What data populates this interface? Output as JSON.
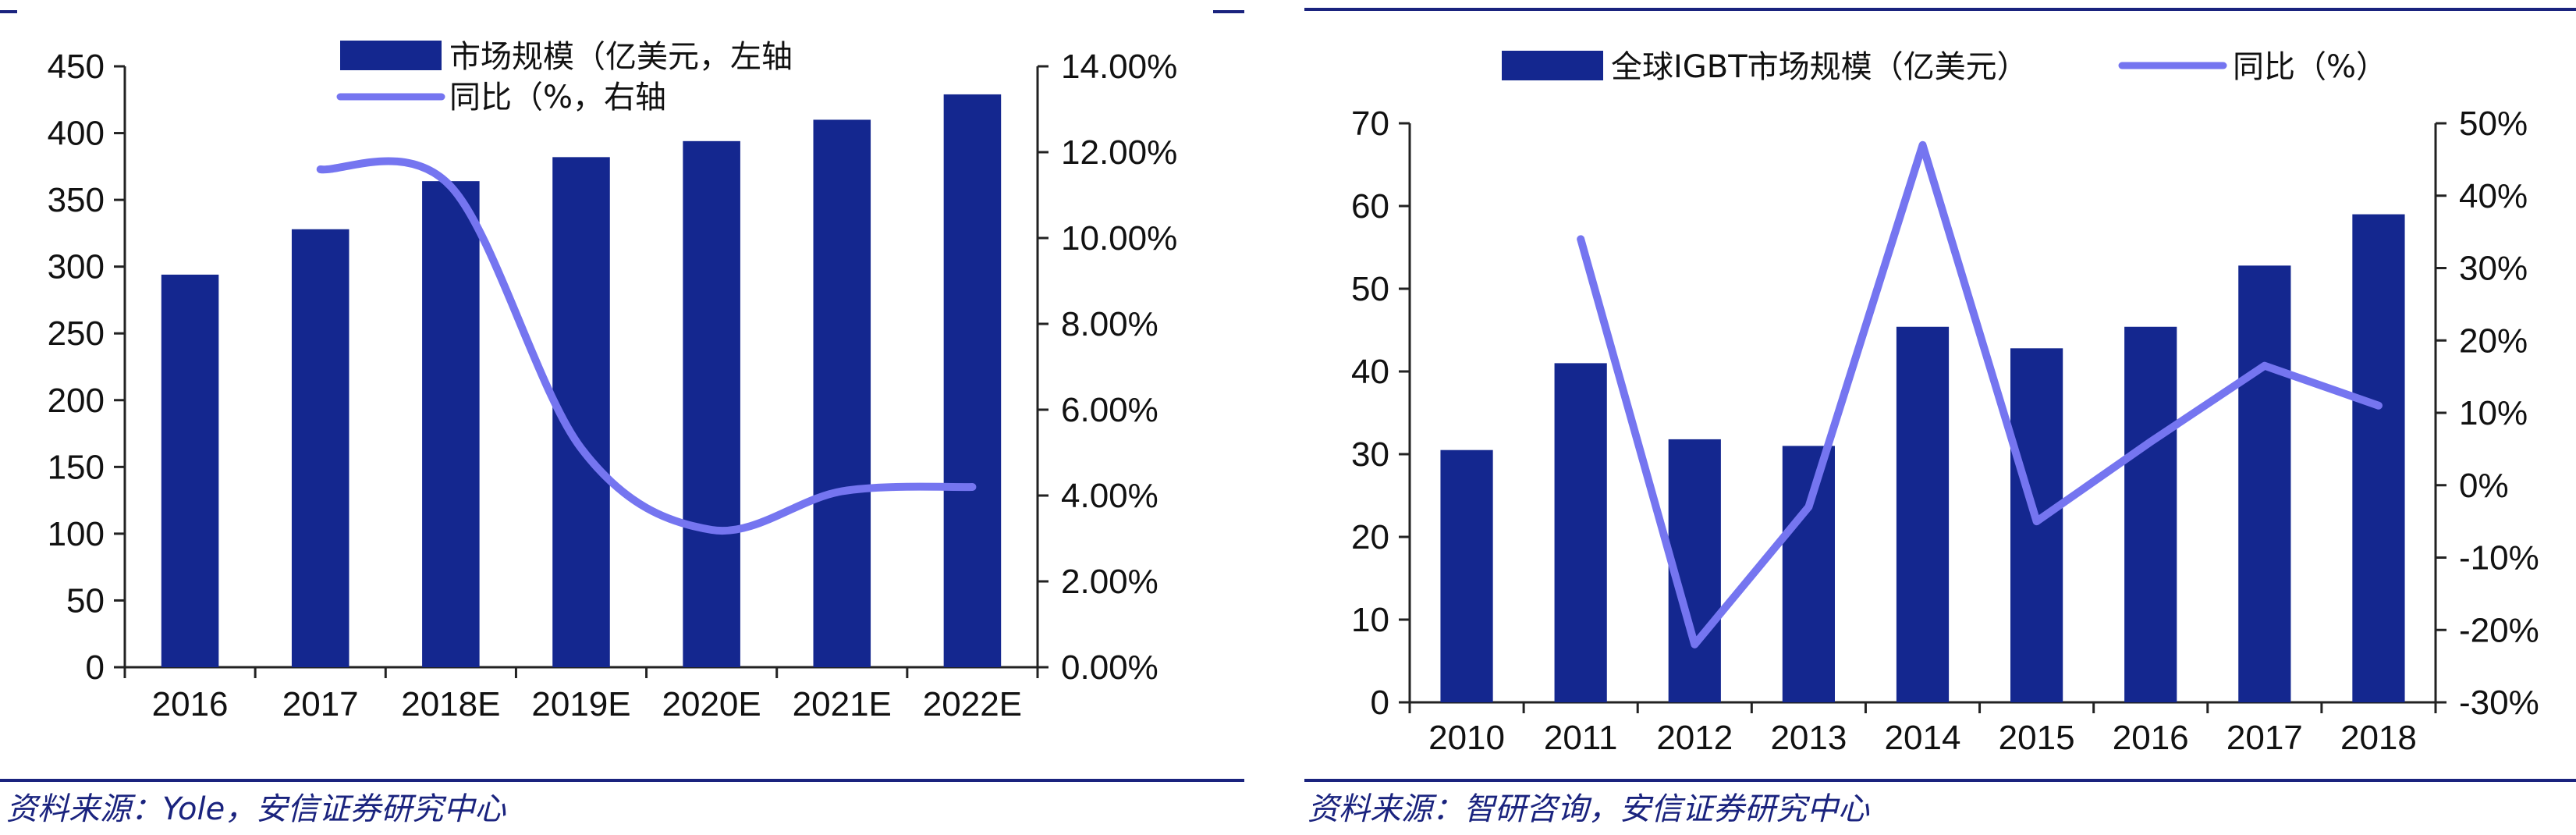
{
  "colors": {
    "bar": "#14278f",
    "line": "#7575f0",
    "rule": "#1a237e",
    "axis": "#222222",
    "source_text": "#1a237e"
  },
  "left_source": "资料来源：Yole，安信证券研究中心",
  "right_source": "资料来源：智研咨询，安信证券研究中心",
  "chart_data": [
    {
      "type": "bar+line",
      "categories": [
        "2016",
        "2017",
        "2018E",
        "2019E",
        "2020E",
        "2021E",
        "2022E"
      ],
      "series": [
        {
          "name": "市场规模（亿美元，左轴",
          "kind": "bar",
          "axis": "left",
          "values": [
            294,
            328,
            364,
            382,
            394,
            410,
            429
          ]
        },
        {
          "name": "同比（%，右轴",
          "kind": "line",
          "axis": "right",
          "smooth": true,
          "values": [
            null,
            11.6,
            11.2,
            5.1,
            3.2,
            4.1,
            4.2
          ]
        }
      ],
      "y_left": {
        "min": 0,
        "max": 450,
        "ticks": [
          "0",
          "50",
          "100",
          "150",
          "200",
          "250",
          "300",
          "350",
          "400",
          "450"
        ]
      },
      "y_right": {
        "min": 0,
        "max": 14,
        "ticks": [
          "0.00%",
          "2.00%",
          "4.00%",
          "6.00%",
          "8.00%",
          "10.00%",
          "12.00%",
          "14.00%"
        ]
      },
      "legend_position": "top-center-stacked",
      "grid": false
    },
    {
      "type": "bar+line",
      "categories": [
        "2010",
        "2011",
        "2012",
        "2013",
        "2014",
        "2015",
        "2016",
        "2017",
        "2018"
      ],
      "series": [
        {
          "name": "全球IGBT市场规模（亿美元）",
          "kind": "bar",
          "axis": "left",
          "values": [
            30.5,
            41,
            31.8,
            31,
            45.4,
            42.8,
            45.4,
            52.8,
            59
          ]
        },
        {
          "name": "同比（%）",
          "kind": "line",
          "axis": "right",
          "smooth": false,
          "values": [
            null,
            34,
            -22,
            -3,
            47,
            -5,
            6,
            16.5,
            11
          ]
        }
      ],
      "y_left": {
        "min": 0,
        "max": 70,
        "ticks": [
          "0",
          "10",
          "20",
          "30",
          "40",
          "50",
          "60",
          "70"
        ]
      },
      "y_right": {
        "min": -30,
        "max": 50,
        "ticks": [
          "-30%",
          "-20%",
          "-10%",
          "0%",
          "10%",
          "20%",
          "30%",
          "40%",
          "50%"
        ]
      },
      "legend_position": "top-center-row",
      "grid": false
    }
  ]
}
